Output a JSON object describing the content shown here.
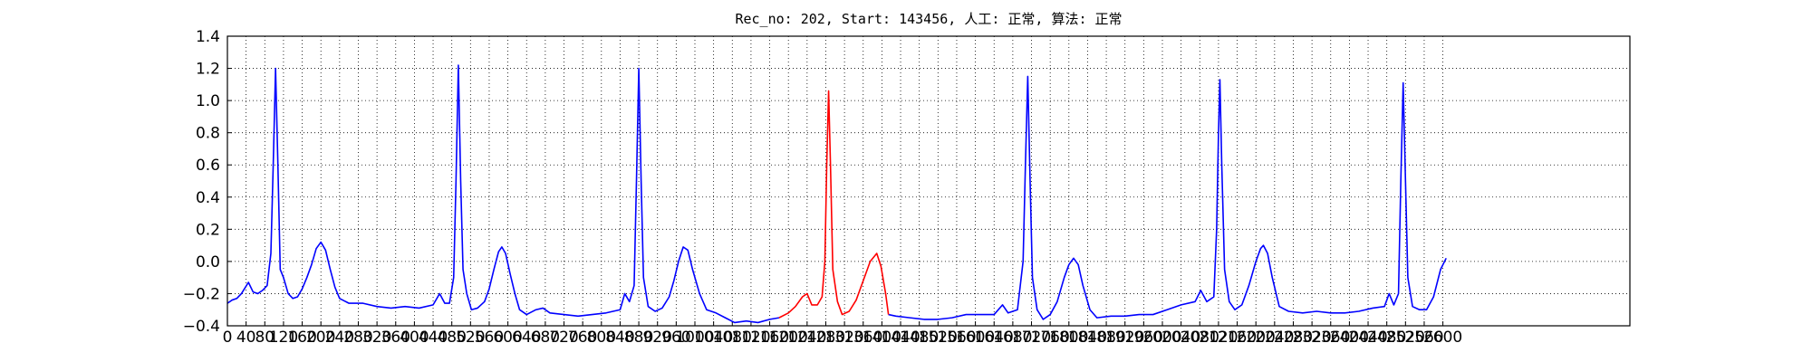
{
  "chart_data": {
    "type": "line",
    "title": "Rec_no: 202, Start: 143456, 人工: 正常, 算法: 正常",
    "xlim": [
      0,
      3000
    ],
    "xticks": [
      0,
      40,
      80,
      120,
      160,
      200,
      240,
      280,
      320,
      360,
      400,
      440,
      480,
      520,
      560,
      600,
      640,
      680,
      720,
      760,
      800,
      840,
      880,
      920,
      960,
      1000,
      1040,
      1080,
      1120,
      1160,
      1200,
      1240,
      1280,
      1320,
      1360,
      1400,
      1440,
      1480,
      1520,
      1560,
      1600,
      1640,
      1680,
      1720,
      1760,
      1800,
      1840,
      1880,
      1920,
      1960,
      2000,
      2040,
      2080,
      2120,
      2160,
      2200,
      2240,
      2280,
      2320,
      2360,
      2400,
      2440,
      2480,
      2520,
      2560,
      2600
    ],
    "ylim": [
      -0.4,
      1.4
    ],
    "yticks": [
      {
        "value": -0.4,
        "label": "−0.4"
      },
      {
        "value": -0.2,
        "label": "−0.2"
      },
      {
        "value": 0,
        "label": "0.0"
      },
      0.2,
      0.4,
      0.6,
      0.8,
      {
        "value": 1,
        "label": "1.0"
      },
      1.2,
      1.4
    ],
    "grid": true,
    "series": [
      {
        "color": "#0000ff",
        "x": [
          0,
          10,
          20,
          30,
          45,
          55,
          65,
          75,
          85,
          93,
          98,
          103,
          108,
          113,
          120,
          130,
          140,
          150,
          160,
          170,
          180,
          190,
          200,
          210,
          220,
          230,
          240,
          260,
          290,
          320,
          350,
          380,
          410,
          440,
          454,
          465,
          475,
          484,
          489,
          494,
          499,
          504,
          512,
          522,
          535,
          550,
          560,
          570,
          580,
          587,
          595,
          605,
          615,
          625,
          640,
          660,
          675,
          690,
          720,
          750,
          780,
          810,
          840,
          850,
          860,
          870,
          875,
          880,
          885,
          890,
          900,
          915,
          930,
          945,
          955,
          965,
          975,
          985,
          995,
          1010,
          1025,
          1045,
          1065,
          1085,
          1110,
          1135,
          1160,
          1180,
          1290,
          1414,
          1430,
          1460,
          1490,
          1520,
          1550,
          1580,
          1640,
          1658,
          1670,
          1690,
          1702,
          1707,
          1712,
          1717,
          1722,
          1732,
          1745,
          1760,
          1775,
          1790,
          1800,
          1810,
          1820,
          1830,
          1845,
          1860,
          1890,
          1920,
          1950,
          1980,
          2010,
          2040,
          2070,
          2082,
          2095,
          2110,
          2116,
          2120,
          2123,
          2127,
          2133,
          2143,
          2155,
          2170,
          2185,
          2200,
          2210,
          2216,
          2225,
          2235,
          2250,
          2270,
          2300,
          2330,
          2360,
          2390,
          2420,
          2450,
          2475,
          2485,
          2495,
          2505,
          2510,
          2515,
          2520,
          2525,
          2535,
          2550,
          2565,
          2580,
          2595,
          2607
        ],
        "values": [
          -0.26,
          -0.24,
          -0.23,
          -0.2,
          -0.13,
          -0.19,
          -0.2,
          -0.18,
          -0.15,
          0.05,
          0.6,
          1.2,
          0.6,
          -0.05,
          -0.1,
          -0.2,
          -0.23,
          -0.22,
          -0.17,
          -0.1,
          -0.02,
          0.08,
          0.12,
          0.07,
          -0.05,
          -0.16,
          -0.23,
          -0.26,
          -0.26,
          -0.28,
          -0.29,
          -0.28,
          -0.29,
          -0.27,
          -0.2,
          -0.26,
          -0.26,
          -0.1,
          0.5,
          1.22,
          0.5,
          -0.05,
          -0.2,
          -0.3,
          -0.29,
          -0.25,
          -0.17,
          -0.05,
          0.06,
          0.09,
          0.05,
          -0.08,
          -0.2,
          -0.3,
          -0.33,
          -0.3,
          -0.29,
          -0.32,
          -0.33,
          -0.34,
          -0.33,
          -0.32,
          -0.3,
          -0.2,
          -0.25,
          -0.15,
          0.5,
          1.2,
          0.5,
          -0.1,
          -0.28,
          -0.31,
          -0.29,
          -0.22,
          -0.12,
          0,
          0.09,
          0.07,
          -0.05,
          -0.2,
          -0.3,
          -0.32,
          -0.35,
          -0.38,
          -0.37,
          -0.38,
          -0.36,
          -0.35,
          null,
          -0.33,
          -0.34,
          -0.35,
          -0.36,
          -0.36,
          -0.35,
          -0.33,
          -0.33,
          -0.27,
          -0.32,
          -0.3,
          0,
          0.6,
          1.15,
          0.5,
          -0.1,
          -0.3,
          -0.36,
          -0.33,
          -0.25,
          -0.1,
          -0.02,
          0.02,
          -0.02,
          -0.15,
          -0.3,
          -0.35,
          -0.34,
          -0.34,
          -0.33,
          -0.33,
          -0.3,
          -0.27,
          -0.25,
          -0.18,
          -0.25,
          -0.22,
          0.2,
          0.8,
          1.13,
          0.6,
          -0.05,
          -0.25,
          -0.3,
          -0.27,
          -0.15,
          0,
          0.08,
          0.1,
          0.05,
          -0.1,
          -0.28,
          -0.31,
          -0.32,
          -0.31,
          -0.32,
          -0.32,
          -0.31,
          -0.29,
          -0.28,
          -0.2,
          -0.27,
          -0.2,
          0.5,
          1.11,
          0.5,
          -0.1,
          -0.28,
          -0.3,
          -0.3,
          -0.22,
          -0.05,
          0.02
        ]
      },
      {
        "color": "#ff0000",
        "x": [
          1180,
          1200,
          1215,
          1230,
          1240,
          1250,
          1262,
          1272,
          1278,
          1282,
          1286,
          1290,
          1295,
          1305,
          1315,
          1330,
          1345,
          1360,
          1375,
          1389,
          1398,
          1408,
          1414
        ],
        "values": [
          -0.35,
          -0.32,
          -0.28,
          -0.22,
          -0.2,
          -0.27,
          -0.27,
          -0.22,
          0,
          0.6,
          1.06,
          0.6,
          -0.05,
          -0.25,
          -0.33,
          -0.31,
          -0.24,
          -0.12,
          0,
          0.05,
          -0.03,
          -0.2,
          -0.33
        ]
      }
    ]
  }
}
